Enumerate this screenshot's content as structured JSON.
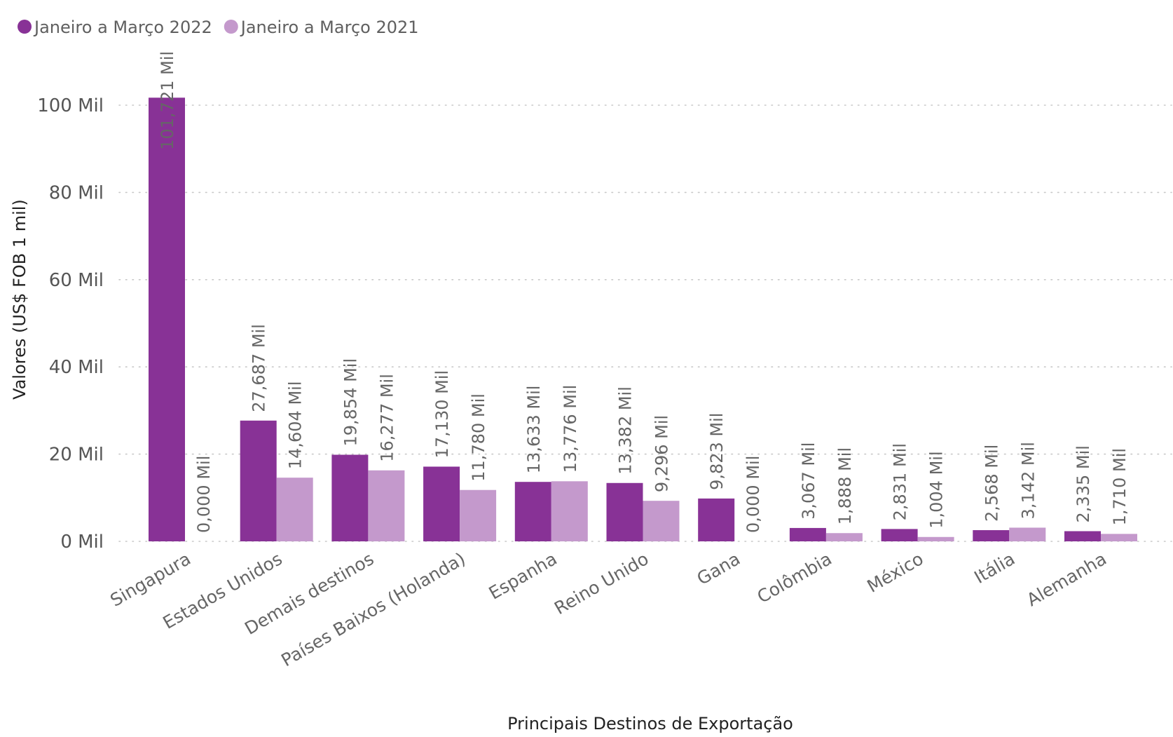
{
  "chart_data": {
    "type": "bar",
    "title": "",
    "xlabel": "Principais Destinos de Exportação",
    "ylabel": "Valores (US$ FOB 1 mil)",
    "ylim": [
      0,
      100000
    ],
    "yticks": [
      0,
      20000,
      40000,
      60000,
      80000,
      100000
    ],
    "ytick_labels": [
      "0 Mil",
      "20 Mil",
      "40 Mil",
      "60 Mil",
      "80 Mil",
      "100 Mil"
    ],
    "legend_position": "top-left",
    "grid": true,
    "categories": [
      "Singapura",
      "Estados Unidos",
      "Demais destinos",
      "Países Baixos (Holanda)",
      "Espanha",
      "Reino Unido",
      "Gana",
      "Colômbia",
      "México",
      "Itália",
      "Alemanha"
    ],
    "series": [
      {
        "name": "Janeiro a Março 2022",
        "color": "#883296",
        "values": [
          101721,
          27687,
          19854,
          17130,
          13633,
          13382,
          9823,
          3067,
          2831,
          2568,
          2335
        ],
        "labels": [
          "101,721 Mil",
          "27,687 Mil",
          "19,854 Mil",
          "17,130 Mil",
          "13,633 Mil",
          "13,382 Mil",
          "9,823 Mil",
          "3,067 Mil",
          "2,831 Mil",
          "2,568 Mil",
          "2,335 Mil"
        ]
      },
      {
        "name": "Janeiro a Março 2021",
        "color": "#c499cc",
        "values": [
          0,
          14604,
          16277,
          11780,
          13776,
          9296,
          0,
          1888,
          1004,
          3142,
          1710
        ],
        "labels": [
          "0,000 Mil",
          "14,604 Mil",
          "16,277 Mil",
          "11,780 Mil",
          "13,776 Mil",
          "9,296 Mil",
          "0,000 Mil",
          "1,888 Mil",
          "1,004 Mil",
          "3,142 Mil",
          "1,710 Mil"
        ]
      }
    ]
  }
}
